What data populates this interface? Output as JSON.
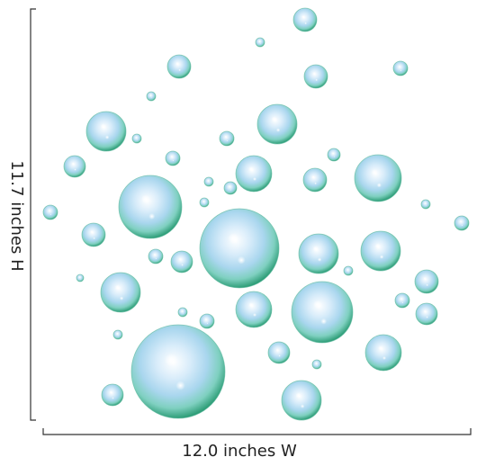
{
  "dimensions": {
    "height_label": "11.7 inches H",
    "width_label": "12.0 inches W"
  }
}
